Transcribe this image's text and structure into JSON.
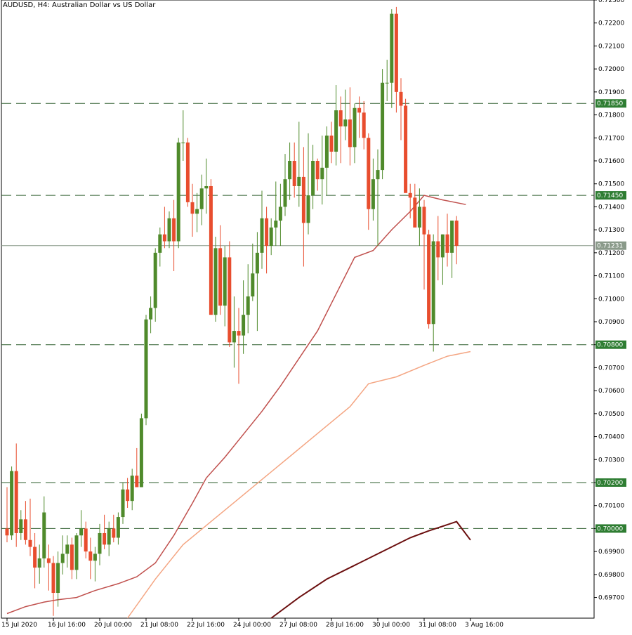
{
  "header": {
    "title": "AUDUSD, H4:  Australian Dollar vs US Dollar"
  },
  "chart_data": {
    "type": "candlestick",
    "symbol": "AUDUSD",
    "timeframe": "H4",
    "title": "AUDUSD, H4:  Australian Dollar vs US Dollar",
    "ylim": [
      0.6961,
      0.723
    ],
    "y_ticks": [
      "0.72300",
      "0.72200",
      "0.72100",
      "0.72000",
      "0.71900",
      "0.71800",
      "0.71700",
      "0.71600",
      "0.71500",
      "0.71400",
      "0.71300",
      "0.71200",
      "0.71100",
      "0.71000",
      "0.70900",
      "0.70800",
      "0.70700",
      "0.70600",
      "0.70500",
      "0.70400",
      "0.70300",
      "0.70200",
      "0.70100",
      "0.70000",
      "0.69900",
      "0.69800",
      "0.69700"
    ],
    "x_labels": [
      {
        "label": "15 Jul 2020",
        "index": 0
      },
      {
        "label": "16 Jul 16:00",
        "index": 10
      },
      {
        "label": "20 Jul 00:00",
        "index": 20
      },
      {
        "label": "21 Jul 08:00",
        "index": 30
      },
      {
        "label": "22 Jul 16:00",
        "index": 40
      },
      {
        "label": "24 Jul 00:00",
        "index": 50
      },
      {
        "label": "27 Jul 08:00",
        "index": 60
      },
      {
        "label": "28 Jul 16:00",
        "index": 70
      },
      {
        "label": "30 Jul 00:00",
        "index": 80
      },
      {
        "label": "31 Jul 08:00",
        "index": 90
      },
      {
        "label": "3 Aug 16:00",
        "index": 100
      }
    ],
    "level_lines": [
      "0.71850",
      "0.71450",
      "0.70800",
      "0.70200",
      "0.70000"
    ],
    "current_price": "0.71231",
    "bull_color": "#4f8a2b",
    "bear_color": "#e84d2e",
    "candles_ohlc": [
      [
        0.7,
        0.7018,
        0.6994,
        0.6997
      ],
      [
        0.6997,
        0.7027,
        0.6995,
        0.7025
      ],
      [
        0.7025,
        0.7037,
        0.6992,
        0.6998
      ],
      [
        0.6998,
        0.7008,
        0.6995,
        0.7004
      ],
      [
        0.7004,
        0.7012,
        0.6993,
        0.6995
      ],
      [
        0.6995,
        0.7013,
        0.6988,
        0.6992
      ],
      [
        0.6992,
        0.6998,
        0.6974,
        0.6983
      ],
      [
        0.6983,
        0.6993,
        0.6976,
        0.6987
      ],
      [
        0.6987,
        0.7014,
        0.6983,
        0.7007
      ],
      [
        0.6987,
        0.6993,
        0.6973,
        0.6985
      ],
      [
        0.6985,
        0.6988,
        0.6962,
        0.6972
      ],
      [
        0.6972,
        0.699,
        0.6966,
        0.6985
      ],
      [
        0.6985,
        0.6997,
        0.698,
        0.6989
      ],
      [
        0.6989,
        0.6997,
        0.6983,
        0.6993
      ],
      [
        0.6993,
        0.6996,
        0.6978,
        0.6982
      ],
      [
        0.6982,
        0.6998,
        0.6978,
        0.6997
      ],
      [
        0.6997,
        0.7008,
        0.6992,
        0.7
      ],
      [
        0.7,
        0.7003,
        0.6987,
        0.699
      ],
      [
        0.699,
        0.6996,
        0.6978,
        0.6986
      ],
      [
        0.6986,
        0.6992,
        0.6977,
        0.6989
      ],
      [
        0.6989,
        0.7002,
        0.6984,
        0.6998
      ],
      [
        0.6998,
        0.7006,
        0.6991,
        0.6993
      ],
      [
        0.6993,
        0.7003,
        0.6988,
        0.7
      ],
      [
        0.7,
        0.7006,
        0.6994,
        0.6996
      ],
      [
        0.6996,
        0.7007,
        0.6993,
        0.7005
      ],
      [
        0.7005,
        0.702,
        0.7002,
        0.7017
      ],
      [
        0.7017,
        0.7022,
        0.7009,
        0.7012
      ],
      [
        0.7012,
        0.7026,
        0.7008,
        0.7023
      ],
      [
        0.7023,
        0.7035,
        0.7018,
        0.7018
      ],
      [
        0.7018,
        0.705,
        0.7018,
        0.7048
      ],
      [
        0.7048,
        0.7093,
        0.7045,
        0.7091
      ],
      [
        0.7091,
        0.7101,
        0.7085,
        0.7096
      ],
      [
        0.7096,
        0.7122,
        0.709,
        0.712
      ],
      [
        0.712,
        0.7131,
        0.7114,
        0.7128
      ],
      [
        0.7128,
        0.714,
        0.7122,
        0.7125
      ],
      [
        0.7125,
        0.7138,
        0.7122,
        0.7135
      ],
      [
        0.7135,
        0.7143,
        0.7112,
        0.7125
      ],
      [
        0.7125,
        0.717,
        0.7122,
        0.7168
      ],
      [
        0.7168,
        0.7182,
        0.716,
        0.7168
      ],
      [
        0.7168,
        0.717,
        0.714,
        0.7142
      ],
      [
        0.7142,
        0.715,
        0.7127,
        0.7137
      ],
      [
        0.7137,
        0.7146,
        0.7129,
        0.7139
      ],
      [
        0.7139,
        0.7154,
        0.7132,
        0.7148
      ],
      [
        0.7148,
        0.7161,
        0.7137,
        0.7149
      ],
      [
        0.7149,
        0.7152,
        0.7093,
        0.7093
      ],
      [
        0.7093,
        0.7127,
        0.709,
        0.7122
      ],
      [
        0.7122,
        0.7132,
        0.7093,
        0.7097
      ],
      [
        0.7097,
        0.7123,
        0.7088,
        0.7118
      ],
      [
        0.7118,
        0.7125,
        0.7079,
        0.7081
      ],
      [
        0.7081,
        0.7101,
        0.707,
        0.7086
      ],
      [
        0.7086,
        0.7096,
        0.7063,
        0.7084
      ],
      [
        0.7084,
        0.7108,
        0.7076,
        0.7093
      ],
      [
        0.7093,
        0.7115,
        0.7085,
        0.7101
      ],
      [
        0.7101,
        0.7124,
        0.7099,
        0.7111
      ],
      [
        0.7111,
        0.7129,
        0.7086,
        0.712
      ],
      [
        0.712,
        0.7147,
        0.7113,
        0.7135
      ],
      [
        0.7135,
        0.714,
        0.7111,
        0.7123
      ],
      [
        0.7123,
        0.7135,
        0.7119,
        0.7131
      ],
      [
        0.7131,
        0.7151,
        0.7123,
        0.7134
      ],
      [
        0.7134,
        0.715,
        0.7123,
        0.714
      ],
      [
        0.714,
        0.7163,
        0.7136,
        0.7152
      ],
      [
        0.7152,
        0.7168,
        0.7143,
        0.716
      ],
      [
        0.716,
        0.7168,
        0.7144,
        0.7149
      ],
      [
        0.7149,
        0.7177,
        0.714,
        0.7153
      ],
      [
        0.7153,
        0.7166,
        0.7114,
        0.7133
      ],
      [
        0.7133,
        0.7172,
        0.7128,
        0.7145
      ],
      [
        0.7145,
        0.7167,
        0.7139,
        0.716
      ],
      [
        0.716,
        0.7161,
        0.7147,
        0.7152
      ],
      [
        0.7152,
        0.7171,
        0.7141,
        0.7157
      ],
      [
        0.7157,
        0.7175,
        0.7145,
        0.7171
      ],
      [
        0.7171,
        0.7177,
        0.7159,
        0.7164
      ],
      [
        0.7164,
        0.7193,
        0.7158,
        0.7182
      ],
      [
        0.7182,
        0.7188,
        0.7159,
        0.7175
      ],
      [
        0.7175,
        0.7191,
        0.7169,
        0.7178
      ],
      [
        0.7178,
        0.7192,
        0.7158,
        0.7166
      ],
      [
        0.7166,
        0.7185,
        0.7159,
        0.7183
      ],
      [
        0.7183,
        0.7188,
        0.717,
        0.7181
      ],
      [
        0.7181,
        0.7186,
        0.7165,
        0.717
      ],
      [
        0.717,
        0.7172,
        0.713,
        0.7139
      ],
      [
        0.7139,
        0.7161,
        0.7134,
        0.7152
      ],
      [
        0.7152,
        0.7165,
        0.7123,
        0.7156
      ],
      [
        0.7156,
        0.72,
        0.7152,
        0.7194
      ],
      [
        0.7194,
        0.7204,
        0.7186,
        0.7194
      ],
      [
        0.7194,
        0.7226,
        0.7183,
        0.7224
      ],
      [
        0.7224,
        0.7227,
        0.7181,
        0.719
      ],
      [
        0.719,
        0.7196,
        0.7169,
        0.7184
      ],
      [
        0.7184,
        0.7187,
        0.7149,
        0.7146
      ],
      [
        0.7146,
        0.715,
        0.7135,
        0.7144
      ],
      [
        0.7144,
        0.715,
        0.7132,
        0.7131
      ],
      [
        0.7131,
        0.7148,
        0.7123,
        0.714
      ],
      [
        0.714,
        0.7143,
        0.7104,
        0.7128
      ],
      [
        0.7128,
        0.713,
        0.7087,
        0.7089
      ],
      [
        0.7089,
        0.7128,
        0.7077,
        0.7125
      ],
      [
        0.7125,
        0.7136,
        0.7108,
        0.7118
      ],
      [
        0.7118,
        0.7128,
        0.7106,
        0.7128
      ],
      [
        0.7128,
        0.7137,
        0.7114,
        0.712
      ],
      [
        0.712,
        0.7133,
        0.7109,
        0.7134
      ],
      [
        0.7134,
        0.7136,
        0.7115,
        0.7123
      ]
    ],
    "moving_averages": [
      {
        "color": "#c0504d",
        "points": [
          [
            0,
            0.6963
          ],
          [
            4,
            0.6966
          ],
          [
            8,
            0.6968
          ],
          [
            11,
            0.6969
          ],
          [
            15,
            0.697
          ],
          [
            19,
            0.6973
          ],
          [
            24,
            0.6976
          ],
          [
            28,
            0.6979
          ],
          [
            32,
            0.6985
          ],
          [
            36,
            0.6997
          ],
          [
            40,
            0.7011
          ],
          [
            43,
            0.7022
          ],
          [
            47,
            0.7031
          ],
          [
            51,
            0.7041
          ],
          [
            55,
            0.7051
          ],
          [
            59,
            0.7062
          ],
          [
            63,
            0.7074
          ],
          [
            67,
            0.7086
          ],
          [
            71,
            0.7102
          ],
          [
            75,
            0.7118
          ],
          [
            79,
            0.7121
          ],
          [
            83,
            0.713
          ],
          [
            87,
            0.7138
          ],
          [
            90,
            0.7145
          ],
          [
            94,
            0.7143
          ],
          [
            99,
            0.7141
          ]
        ]
      },
      {
        "color": "#f4a582",
        "points": [
          [
            26,
            0.6961
          ],
          [
            32,
            0.6978
          ],
          [
            38,
            0.6993
          ],
          [
            44,
            0.7003
          ],
          [
            50,
            0.7013
          ],
          [
            56,
            0.7023
          ],
          [
            62,
            0.7033
          ],
          [
            68,
            0.7043
          ],
          [
            74,
            0.7053
          ],
          [
            78,
            0.7063
          ],
          [
            84,
            0.7066
          ],
          [
            90,
            0.7071
          ],
          [
            95,
            0.7075
          ],
          [
            100,
            0.7077
          ]
        ]
      },
      {
        "color": "#6b0f0f",
        "points": [
          [
            57,
            0.6961
          ],
          [
            63,
            0.697
          ],
          [
            69,
            0.6978
          ],
          [
            75,
            0.6984
          ],
          [
            81,
            0.699
          ],
          [
            87,
            0.6996
          ],
          [
            91,
            0.6999
          ],
          [
            97,
            0.7003
          ],
          [
            100,
            0.6995
          ]
        ]
      }
    ]
  }
}
